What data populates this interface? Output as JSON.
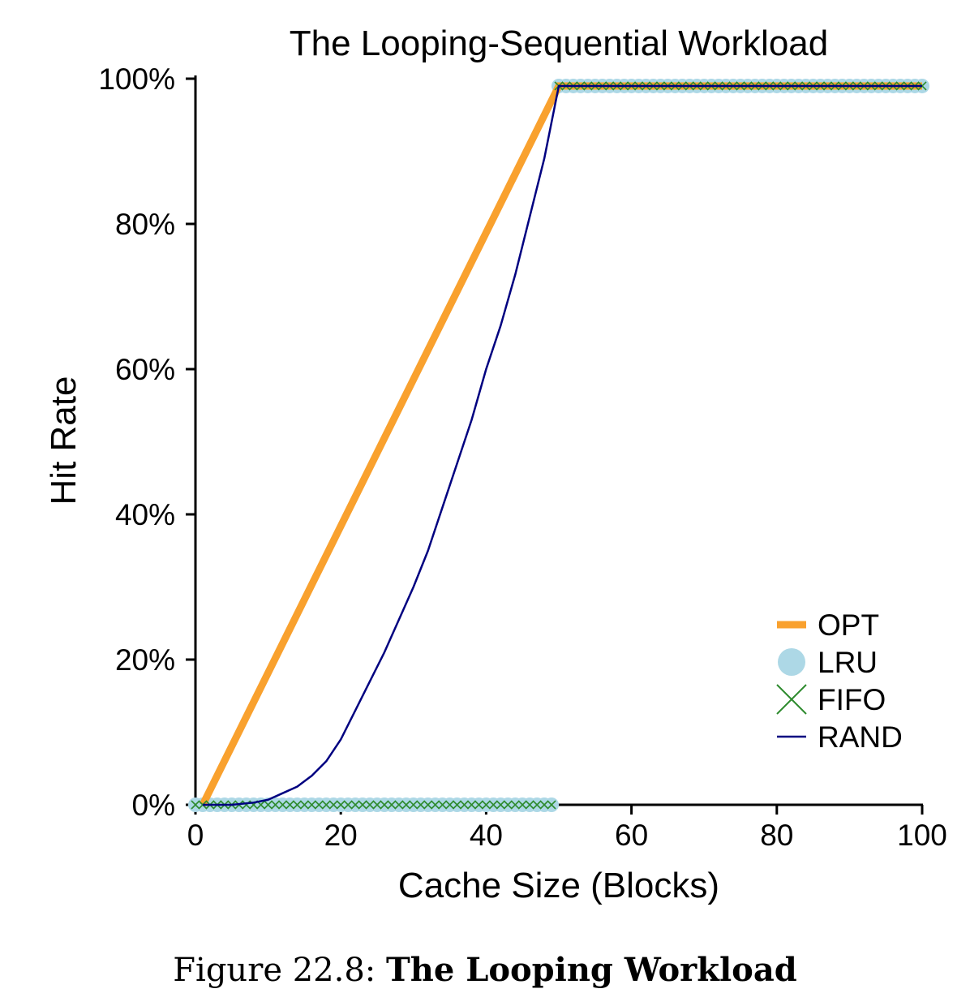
{
  "caption": {
    "label": "Figure 22.8:",
    "title": "The Looping Workload"
  },
  "chart_data": {
    "type": "line",
    "title": "The Looping-Sequential Workload",
    "xlabel": "Cache Size (Blocks)",
    "ylabel": "Hit Rate",
    "xlim": [
      0,
      100
    ],
    "ylim": [
      0,
      100
    ],
    "xticks": [
      "0",
      "20",
      "40",
      "60",
      "80",
      "100"
    ],
    "yticks": [
      "0%",
      "20%",
      "40%",
      "60%",
      "80%",
      "100%"
    ],
    "grid": false,
    "legend_position": "lower-right",
    "series": [
      {
        "name": "OPT",
        "color": "#f9a12e",
        "marker": "none",
        "points": [
          [
            1,
            0
          ],
          [
            50,
            99
          ],
          [
            100,
            99
          ]
        ]
      },
      {
        "name": "LRU",
        "color": "#add8e6",
        "marker": "circle",
        "description": "0% for cache sizes 0-49, 99% for cache sizes 50-100 (every integer)",
        "points": [
          [
            0,
            0
          ],
          [
            49,
            0
          ],
          [
            50,
            99
          ],
          [
            100,
            99
          ]
        ]
      },
      {
        "name": "FIFO",
        "color": "#2e8b2e",
        "marker": "x",
        "points": [
          [
            0,
            0
          ],
          [
            49,
            0
          ],
          [
            50,
            99
          ],
          [
            100,
            99
          ]
        ]
      },
      {
        "name": "RAND",
        "color": "#000080",
        "marker": "none",
        "points": [
          [
            1,
            0
          ],
          [
            5,
            0
          ],
          [
            8,
            0.3
          ],
          [
            10,
            0.7
          ],
          [
            12,
            1.6
          ],
          [
            14,
            2.5
          ],
          [
            16,
            4
          ],
          [
            18,
            6
          ],
          [
            20,
            9
          ],
          [
            22,
            13
          ],
          [
            24,
            17
          ],
          [
            26,
            21
          ],
          [
            28,
            25.5
          ],
          [
            30,
            30
          ],
          [
            32,
            35
          ],
          [
            34,
            41
          ],
          [
            36,
            47
          ],
          [
            38,
            53
          ],
          [
            40,
            60
          ],
          [
            42,
            66
          ],
          [
            44,
            73
          ],
          [
            46,
            81
          ],
          [
            48,
            89
          ],
          [
            50,
            99
          ],
          [
            100,
            99
          ]
        ]
      }
    ]
  }
}
